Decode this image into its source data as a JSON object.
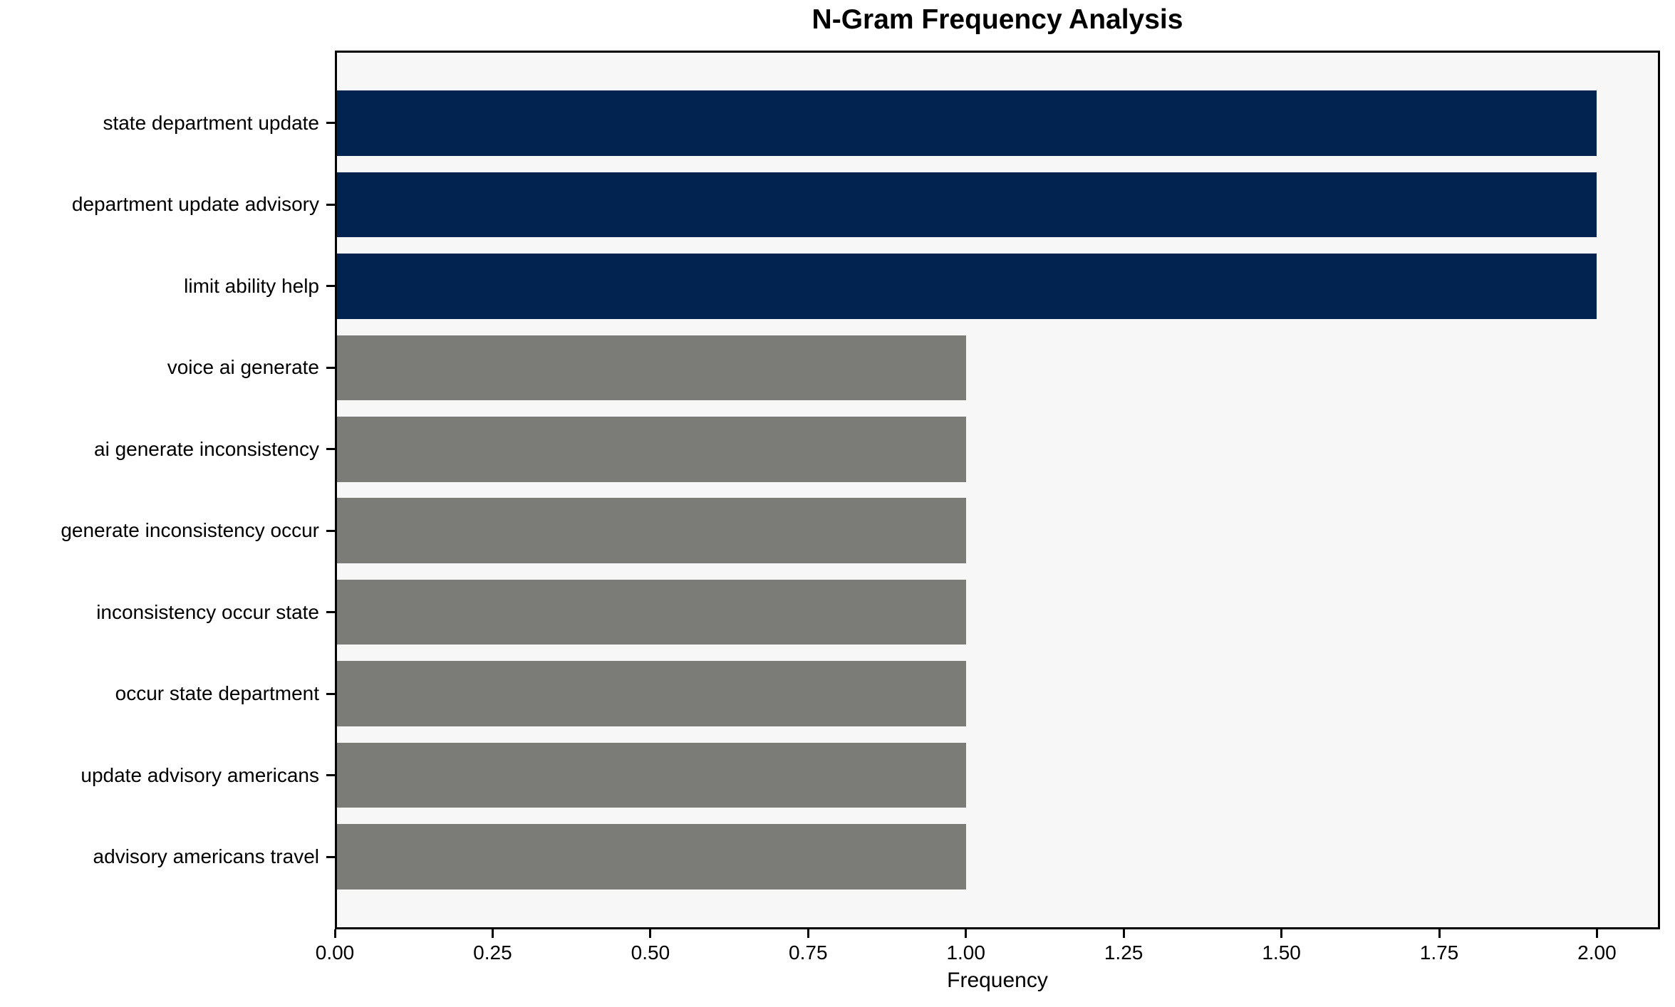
{
  "chart_data": {
    "type": "bar",
    "orientation": "horizontal",
    "title": "N-Gram Frequency Analysis",
    "xlabel": "Frequency",
    "ylabel": "",
    "categories": [
      "state department update",
      "department update advisory",
      "limit ability help",
      "voice ai generate",
      "ai generate inconsistency",
      "generate inconsistency occur",
      "inconsistency occur state",
      "occur state department",
      "update advisory americans",
      "advisory americans travel"
    ],
    "values": [
      2,
      2,
      2,
      1,
      1,
      1,
      1,
      1,
      1,
      1
    ],
    "xlim": [
      0,
      2.1
    ],
    "xticks": [
      0.0,
      0.25,
      0.5,
      0.75,
      1.0,
      1.25,
      1.5,
      1.75,
      2.0
    ],
    "xtick_labels": [
      "0.00",
      "0.25",
      "0.50",
      "0.75",
      "1.00",
      "1.25",
      "1.50",
      "1.75",
      "2.00"
    ],
    "grid": false,
    "legend": null,
    "bar_height_fraction": 0.8,
    "bar_colors": [
      "#022350",
      "#022350",
      "#022350",
      "#7b7b78",
      "#7b7b78",
      "#7b7b78",
      "#7b7b78",
      "#7b7b78",
      "#7b7b78",
      "#7b7b78"
    ],
    "colors": {
      "bar_high": "#022350",
      "bar_low": "#7b7b78",
      "plot_background": "#f7f7f7",
      "figure_background": "#ffffff",
      "spine": "#000000",
      "text": "#000000"
    }
  }
}
